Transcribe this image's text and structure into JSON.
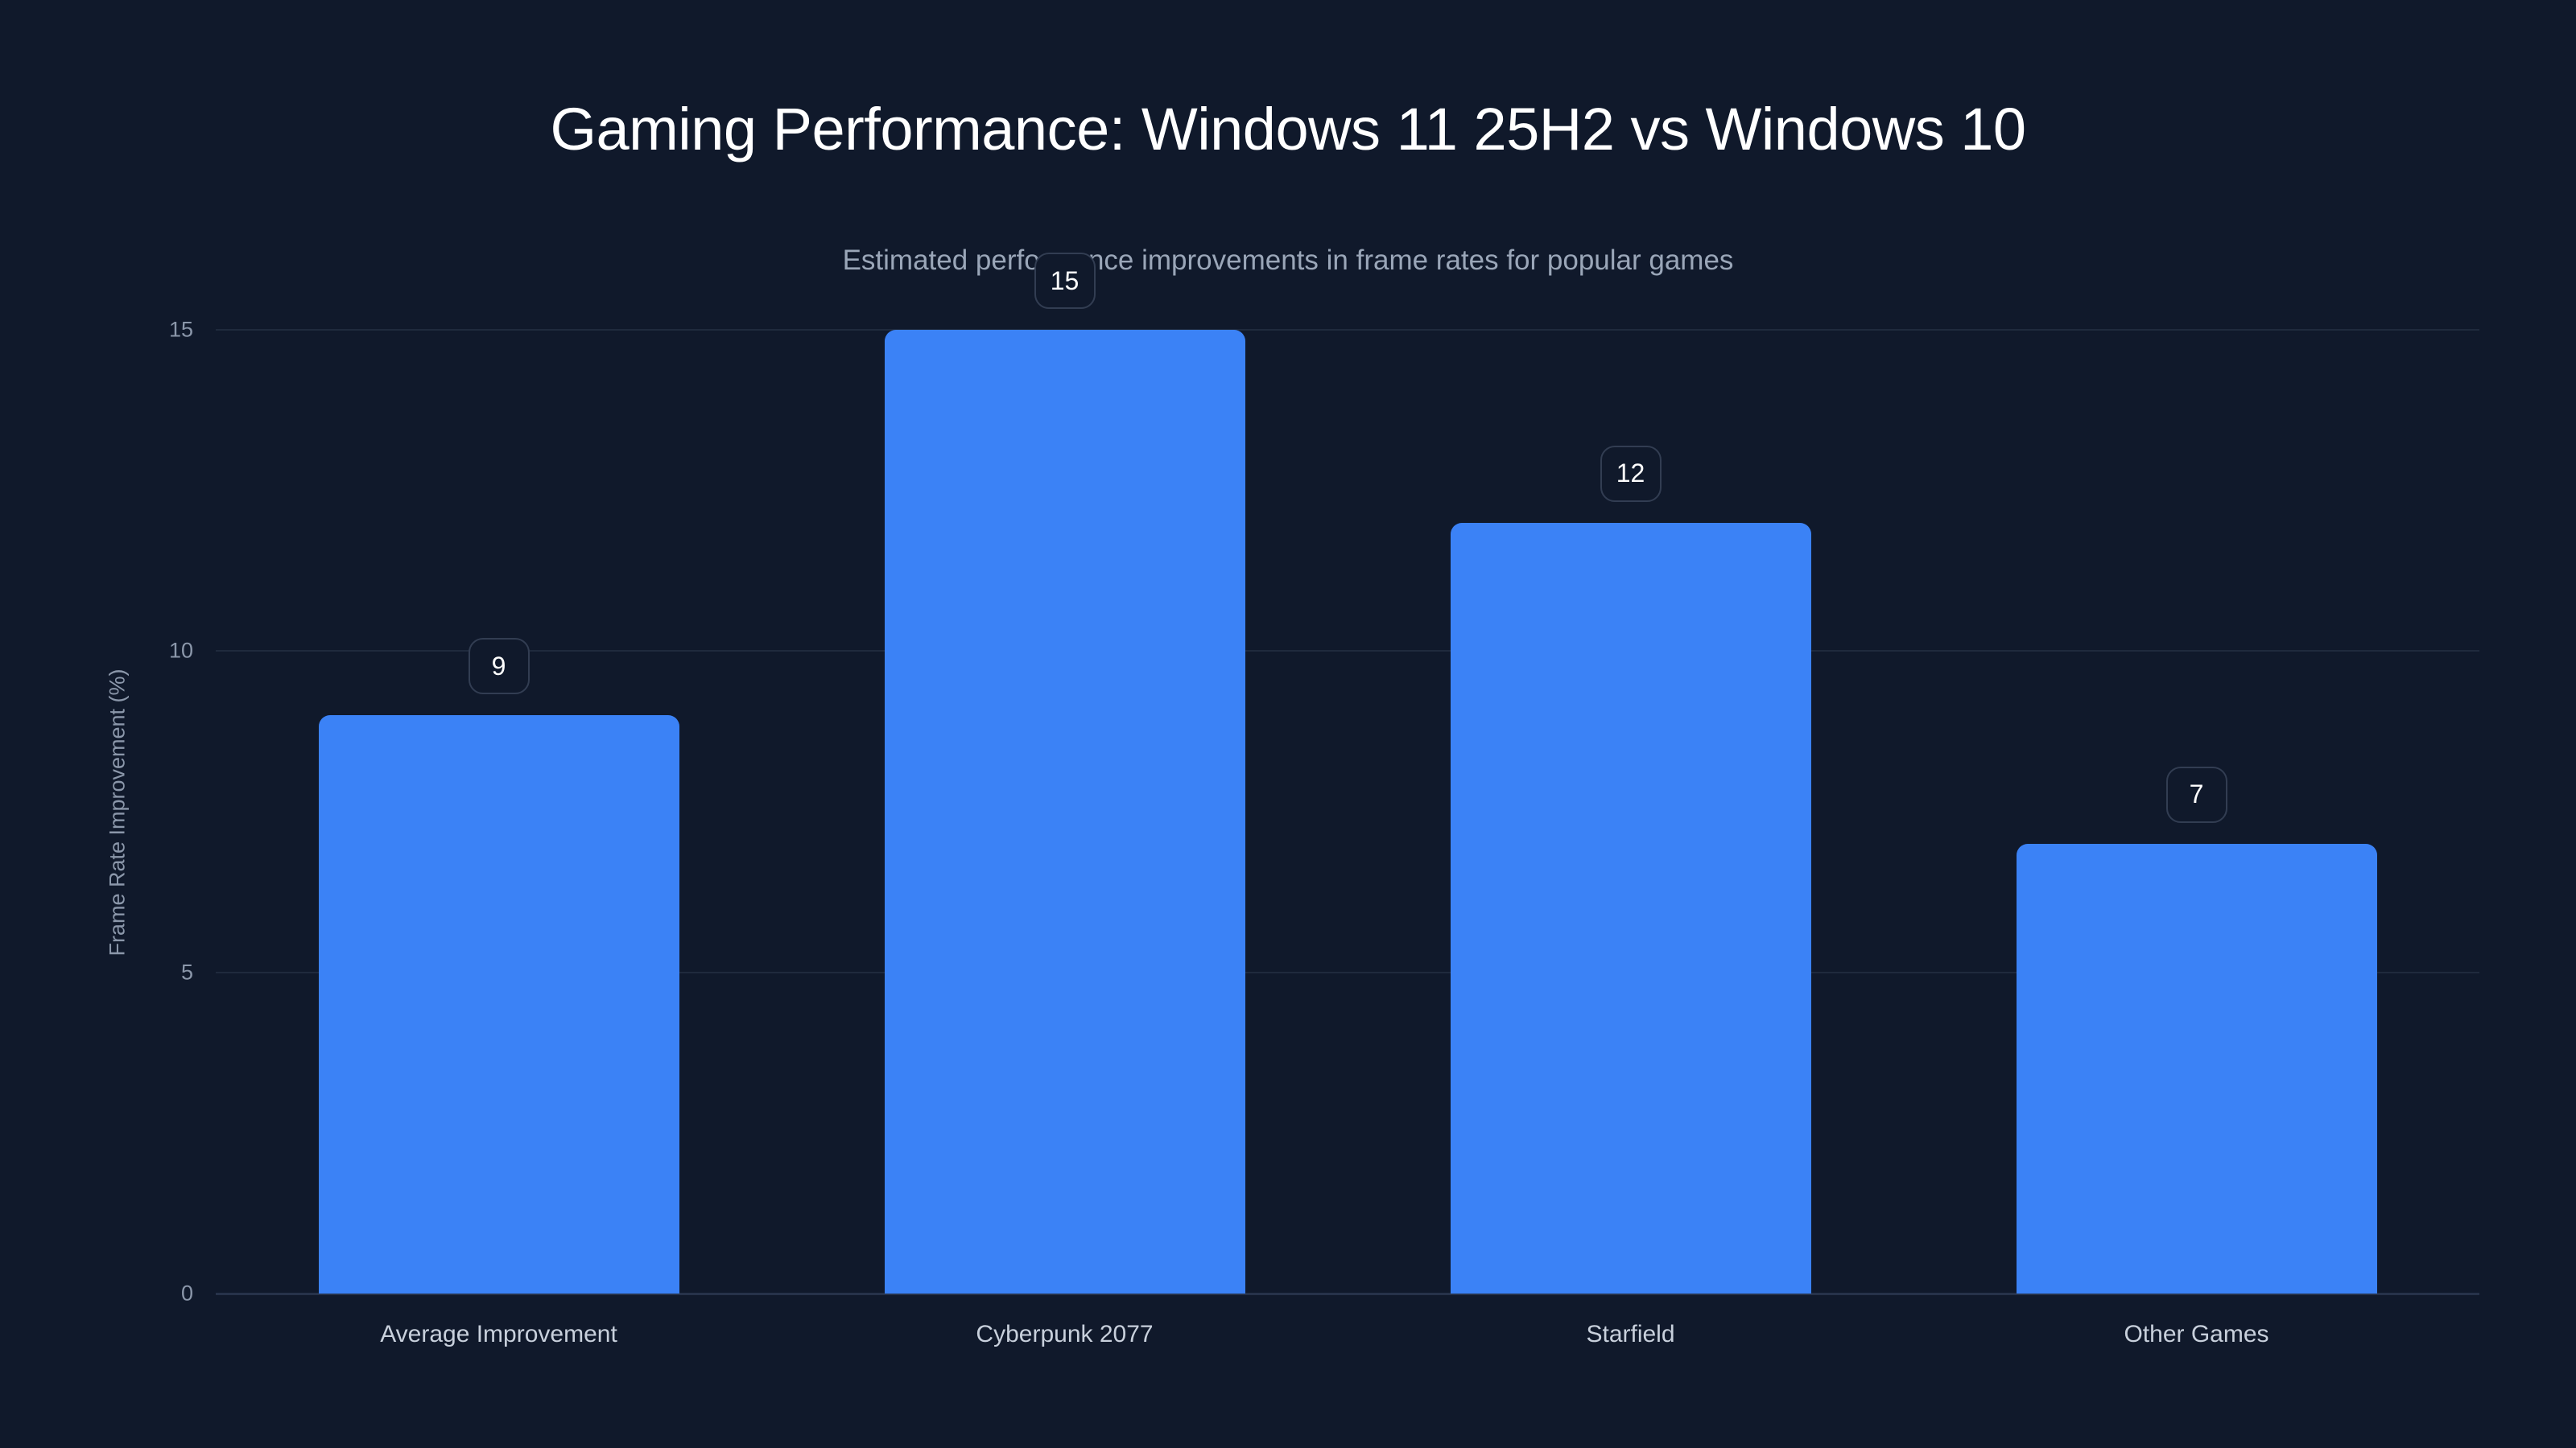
{
  "chart": {
    "title": "Gaming Performance: Windows 11 25H2 vs Windows 10",
    "subtitle": "Estimated performance improvements in frame rates for popular games",
    "ylabel": "Frame Rate Improvement (%)",
    "yticks": [
      "0",
      "5",
      "10",
      "15"
    ],
    "bar_color": "#3b82f6",
    "background": "#10192b",
    "bars": [
      {
        "category": "Average Improvement",
        "value": 9,
        "label": "9"
      },
      {
        "category": "Cyberpunk 2077",
        "value": 15,
        "label": "15"
      },
      {
        "category": "Starfield",
        "value": 12,
        "label": "12"
      },
      {
        "category": "Other Games",
        "value": 7,
        "label": "7"
      }
    ]
  },
  "chart_data": {
    "type": "bar",
    "title": "Gaming Performance: Windows 11 25H2 vs Windows 10",
    "subtitle": "Estimated performance improvements in frame rates for popular games",
    "categories": [
      "Average Improvement",
      "Cyberpunk 2077",
      "Starfield",
      "Other Games"
    ],
    "values": [
      9,
      15,
      12,
      7
    ],
    "xlabel": "",
    "ylabel": "Frame Rate Improvement (%)",
    "ylim": [
      0,
      15
    ],
    "yticks": [
      0,
      5,
      10,
      15
    ],
    "grid": true,
    "legend": null,
    "data_labels": true
  }
}
